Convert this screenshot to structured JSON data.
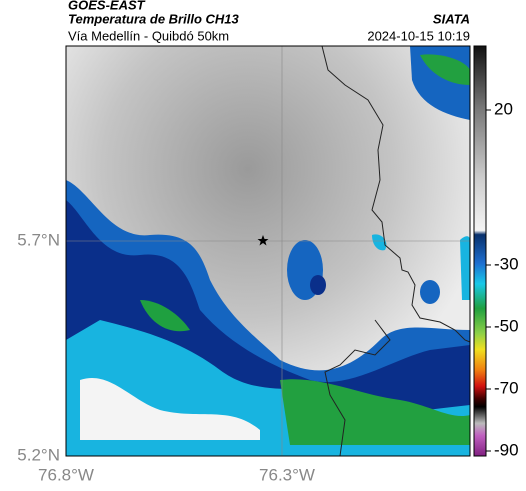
{
  "header": {
    "title": "GOES-EAST",
    "subtitle": "Temperatura de Brillo CH13",
    "route": "Vía Medellín - Quibdó 50km",
    "source": "SIATA",
    "datetime": "2024-10-15 10:19"
  },
  "map": {
    "lat_labels": [
      "5.7°N",
      "5.2°N"
    ],
    "lon_labels": [
      "76.8°W",
      "76.3°W"
    ]
  },
  "colorbar": {
    "ticks": [
      20,
      -30,
      -50,
      -70,
      -90
    ]
  }
}
